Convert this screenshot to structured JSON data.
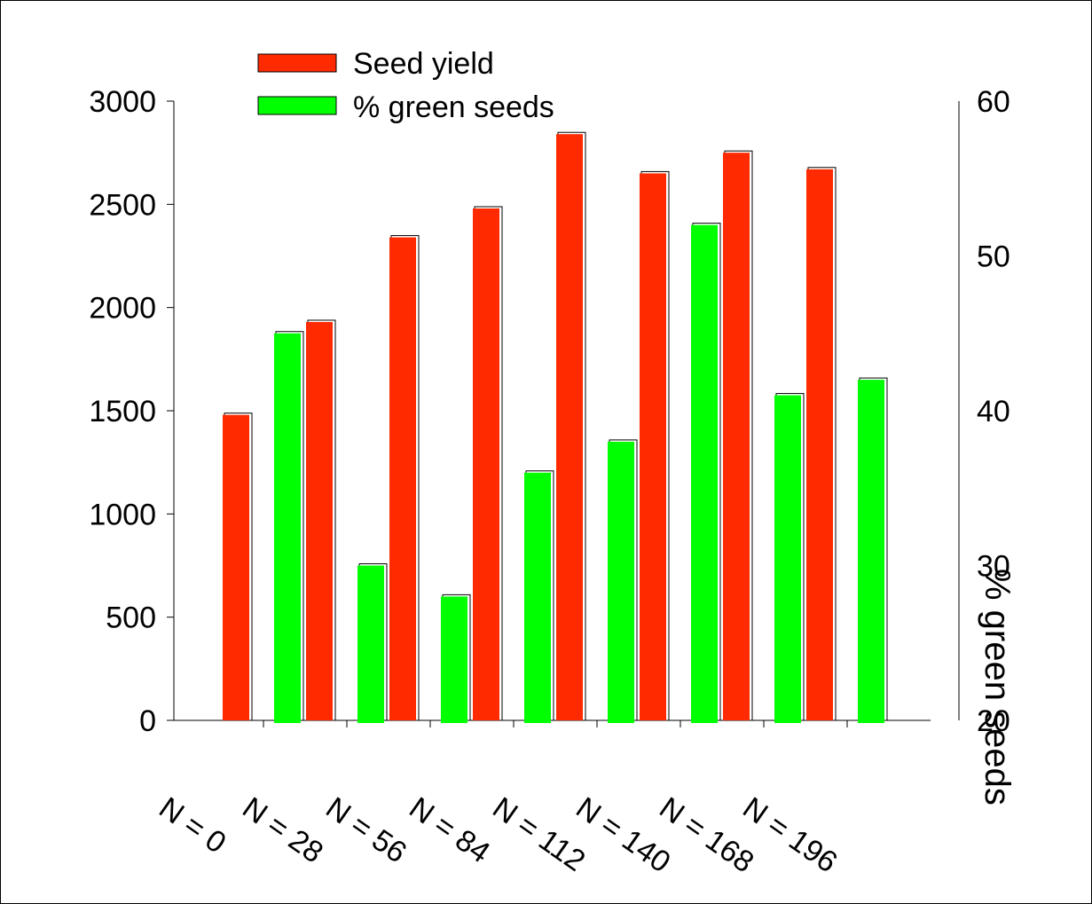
{
  "chart_data": {
    "type": "bar",
    "title": "",
    "xlabel": "",
    "ylabel": "",
    "y2label": "% green seeds",
    "categories": [
      "N = 0",
      "N = 28",
      "N = 56",
      "N = 84",
      "N = 112",
      "N = 140",
      "N = 168",
      "N = 196"
    ],
    "series": [
      {
        "name": "Seed yield",
        "axis": "left",
        "color": "#ff2a00",
        "values": [
          1480,
          1930,
          2340,
          2480,
          2840,
          2650,
          2750,
          2670
        ]
      },
      {
        "name": "% green seeds",
        "axis": "right",
        "color": "#00ff00",
        "values": [
          45,
          30,
          28,
          36,
          38,
          52,
          41,
          42
        ]
      }
    ],
    "ylim": [
      0,
      3000
    ],
    "y_ticks": [
      0,
      500,
      1000,
      1500,
      2000,
      2500,
      3000
    ],
    "y2lim": [
      20,
      60
    ],
    "y2_ticks": [
      20,
      30,
      40,
      50,
      60
    ],
    "legend_position": "top-left",
    "grid": false
  }
}
